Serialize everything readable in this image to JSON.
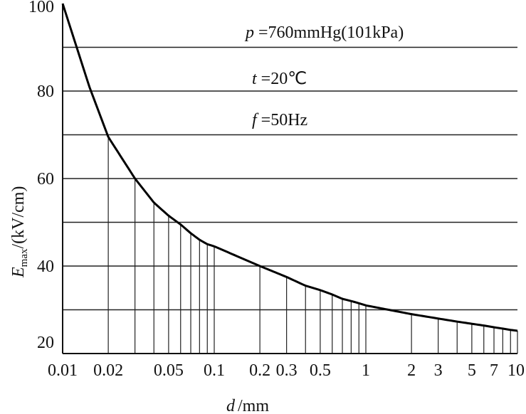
{
  "chart_data": {
    "type": "line",
    "xscale": "log",
    "xlim": [
      0.01,
      10
    ],
    "ylim": [
      20,
      100
    ],
    "grid": true,
    "xlabel": {
      "var": "d",
      "unit": "/mm"
    },
    "ylabel": {
      "var": "E",
      "sub": "max",
      "unit": "/(kV/cm)"
    },
    "x_ticks": [
      {
        "v": 0.01,
        "label": "0.01"
      },
      {
        "v": 0.02,
        "label": "0.02"
      },
      {
        "v": 0.05,
        "label": "0.05"
      },
      {
        "v": 0.1,
        "label": "0.1"
      },
      {
        "v": 0.2,
        "label": "0.2"
      },
      {
        "v": 0.3,
        "label": "0.3"
      },
      {
        "v": 0.5,
        "label": "0.5"
      },
      {
        "v": 1,
        "label": "1"
      },
      {
        "v": 2,
        "label": "2"
      },
      {
        "v": 3,
        "label": "3"
      },
      {
        "v": 5,
        "label": "5"
      },
      {
        "v": 7,
        "label": "7"
      },
      {
        "v": 10,
        "label": "10"
      }
    ],
    "y_ticks": [
      {
        "v": 20,
        "label": "20"
      },
      {
        "v": 40,
        "label": "40"
      },
      {
        "v": 60,
        "label": "60"
      },
      {
        "v": 80,
        "label": "80"
      },
      {
        "v": 100,
        "label": "100"
      }
    ],
    "h_gridlines": [
      30,
      40,
      50,
      60,
      70,
      80,
      90
    ],
    "v_drop_x": [
      0.02,
      0.03,
      0.04,
      0.05,
      0.06,
      0.07,
      0.08,
      0.09,
      0.1,
      0.2,
      0.3,
      0.4,
      0.5,
      0.6,
      0.7,
      0.8,
      0.9,
      1,
      2,
      3,
      4,
      5,
      6,
      7,
      8,
      9,
      10
    ],
    "series": [
      {
        "values": [
          [
            0.01,
            100
          ],
          [
            0.015,
            81
          ],
          [
            0.02,
            69.5
          ],
          [
            0.03,
            60
          ],
          [
            0.04,
            54.5
          ],
          [
            0.05,
            51.5
          ],
          [
            0.06,
            49.5
          ],
          [
            0.07,
            47.5
          ],
          [
            0.08,
            46
          ],
          [
            0.09,
            45
          ],
          [
            0.1,
            44.5
          ],
          [
            0.2,
            40
          ],
          [
            0.3,
            37.5
          ],
          [
            0.4,
            35.5
          ],
          [
            0.5,
            34.5
          ],
          [
            0.6,
            33.5
          ],
          [
            0.7,
            32.5
          ],
          [
            0.8,
            32
          ],
          [
            0.9,
            31.5
          ],
          [
            1,
            31
          ],
          [
            2,
            29
          ],
          [
            3,
            28
          ],
          [
            4,
            27.3
          ],
          [
            5,
            26.8
          ],
          [
            6,
            26.4
          ],
          [
            7,
            26
          ],
          [
            8,
            25.7
          ],
          [
            9,
            25.4
          ],
          [
            10,
            25.2
          ]
        ]
      }
    ],
    "annotations": [
      {
        "var": "p",
        "text": " =760mmHg(101kPa)"
      },
      {
        "var": "t",
        "text": " =20℃"
      },
      {
        "var": "f",
        "text": " =50Hz"
      }
    ]
  }
}
